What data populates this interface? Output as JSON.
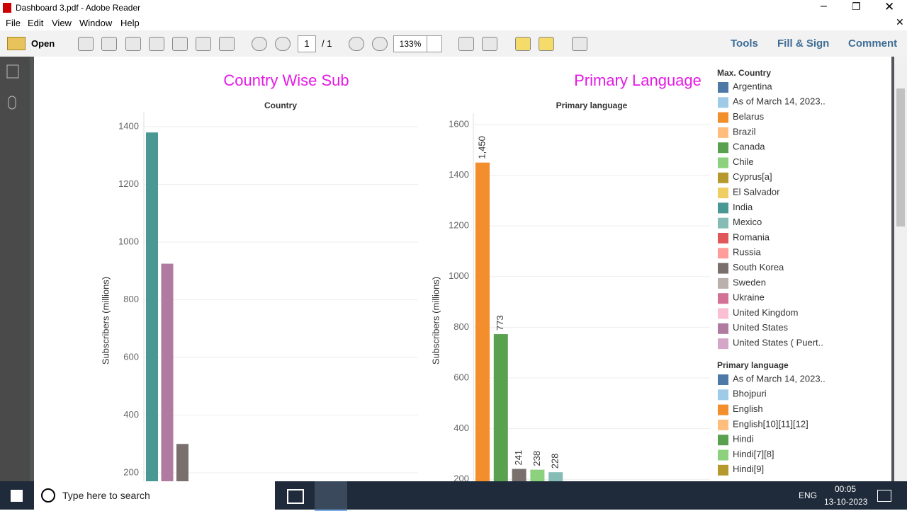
{
  "window": {
    "title": "Dashboard 3.pdf - Adobe Reader"
  },
  "menu": [
    "File",
    "Edit",
    "View",
    "Window",
    "Help"
  ],
  "toolbar": {
    "open": "Open",
    "page": "1",
    "page_total": "/ 1",
    "zoom": "133%",
    "tools": "Tools",
    "fill_sign": "Fill & Sign",
    "comment": "Comment"
  },
  "charts": [
    {
      "type": "bar",
      "title": "Country Wise Sub",
      "header": "Country",
      "y_label": "Subscribers (millions)",
      "ylim": [
        0,
        1450
      ],
      "yticks": [
        200,
        400,
        600,
        800,
        1000,
        1200,
        1400
      ],
      "bars": [
        {
          "value": 1380,
          "color": "#499894"
        },
        {
          "value": 925,
          "color": "#b07aa1"
        },
        {
          "value": 300,
          "color": "#79706e"
        }
      ]
    },
    {
      "type": "bar",
      "title": "Primary Language",
      "header": "Primary language",
      "y_label": "Subscribers (millions)",
      "ylim": [
        0,
        1645
      ],
      "yticks": [
        200,
        400,
        600,
        800,
        1000,
        1200,
        1400,
        1600
      ],
      "bars": [
        {
          "value": 1450,
          "label": "1,450",
          "color": "#f28e2b"
        },
        {
          "value": 773,
          "label": "773",
          "color": "#59a14f"
        },
        {
          "value": 241,
          "label": "241",
          "color": "#79706e"
        },
        {
          "value": 238,
          "label": "238",
          "color": "#8cd17d"
        },
        {
          "value": 228,
          "label": "228",
          "color": "#86bcb6"
        }
      ]
    }
  ],
  "legends": [
    {
      "title": "Max. Country",
      "items": [
        {
          "label": "Argentina",
          "color": "#4e79a7"
        },
        {
          "label": "As of March 14, 2023..",
          "color": "#a0cbe8"
        },
        {
          "label": "Belarus",
          "color": "#f28e2b"
        },
        {
          "label": "Brazil",
          "color": "#ffbe7d"
        },
        {
          "label": "Canada",
          "color": "#59a14f"
        },
        {
          "label": "Chile",
          "color": "#8cd17d"
        },
        {
          "label": "Cyprus[a]",
          "color": "#b6992d"
        },
        {
          "label": "El Salvador",
          "color": "#f1ce63"
        },
        {
          "label": "India",
          "color": "#499894"
        },
        {
          "label": "Mexico",
          "color": "#86bcb6"
        },
        {
          "label": "Romania",
          "color": "#e15759"
        },
        {
          "label": "Russia",
          "color": "#ff9d9a"
        },
        {
          "label": "South Korea",
          "color": "#79706e"
        },
        {
          "label": "Sweden",
          "color": "#bab0ac"
        },
        {
          "label": "Ukraine",
          "color": "#d37295"
        },
        {
          "label": "United Kingdom",
          "color": "#fabfd2"
        },
        {
          "label": "United States",
          "color": "#b07aa1"
        },
        {
          "label": "United States ( Puert..",
          "color": "#d4a6c8"
        }
      ]
    },
    {
      "title": "Primary language",
      "items": [
        {
          "label": "As of March 14, 2023..",
          "color": "#4e79a7"
        },
        {
          "label": "Bhojpuri",
          "color": "#a0cbe8"
        },
        {
          "label": "English",
          "color": "#f28e2b"
        },
        {
          "label": "English[10][11][12]",
          "color": "#ffbe7d"
        },
        {
          "label": "Hindi",
          "color": "#59a14f"
        },
        {
          "label": "Hindi[7][8]",
          "color": "#8cd17d"
        },
        {
          "label": "Hindi[9]",
          "color": "#b6992d"
        }
      ]
    }
  ],
  "taskbar": {
    "search": "Type here to search",
    "language": "ENG",
    "time": "00:05",
    "date": "13-10-2023"
  }
}
